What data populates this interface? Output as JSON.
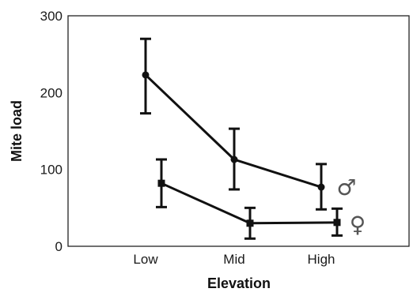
{
  "chart_data": {
    "type": "line",
    "categories": [
      "Low",
      "Mid",
      "High"
    ],
    "xlabel": "Elevation",
    "ylabel": "Mite load",
    "ylim": [
      0,
      300
    ],
    "yticks": [
      "0",
      "100",
      "200",
      "300"
    ],
    "grid": false,
    "error_bars": true,
    "series": [
      {
        "name": "♂",
        "marker": "circle",
        "values": [
          223,
          113,
          77
        ],
        "err_low": [
          173,
          74,
          48
        ],
        "err_high": [
          270,
          153,
          107
        ]
      },
      {
        "name": "♀",
        "marker": "square",
        "values": [
          82,
          30,
          31
        ],
        "err_low": [
          51,
          10,
          14
        ],
        "err_high": [
          113,
          50,
          49
        ]
      }
    ]
  },
  "colors": {
    "line": "#111111",
    "axis": "#222222",
    "series_label": "#555555"
  }
}
